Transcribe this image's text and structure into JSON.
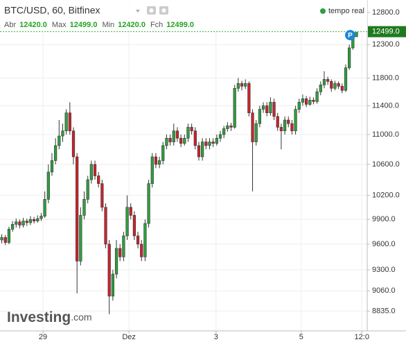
{
  "chart_data": {
    "type": "candlestick",
    "title": "BTC/USD, 60, Bitfinex",
    "realtime_label": "tempo real",
    "ohlc_labels": [
      "Abr",
      "Max",
      "Min",
      "Fch"
    ],
    "ohlc_values": [
      {
        "value": 12420,
        "label": "12420.0"
      },
      {
        "value": 12499,
        "label": "12499.0"
      },
      {
        "value": 12420,
        "label": "12420.0"
      },
      {
        "value": 12499,
        "label": "12499.0"
      }
    ],
    "last_price": {
      "value": 12499,
      "label": "12499.0"
    },
    "marker_label": "P",
    "logo": {
      "name": "Investing",
      "suffix": ".com"
    },
    "up_color": "#2f9e3f",
    "down_color": "#c8242c",
    "price_line_color": "#2db52d",
    "log_scale": true,
    "grid": true,
    "ylim": [
      8620,
      13000
    ],
    "yticks": [
      {
        "value": 12800,
        "label": "12800.0"
      },
      {
        "value": 12300,
        "label": "12300.0"
      },
      {
        "value": 11800,
        "label": "11800.0"
      },
      {
        "value": 11400,
        "label": "11400.0"
      },
      {
        "value": 11000,
        "label": "11000.0"
      },
      {
        "value": 10600,
        "label": "10600.0"
      },
      {
        "value": 10200,
        "label": "10200.0"
      },
      {
        "value": 9900,
        "label": "9900.0"
      },
      {
        "value": 9600,
        "label": "9600.0"
      },
      {
        "value": 9300,
        "label": "9300.0"
      },
      {
        "value": 9060,
        "label": "9060.0"
      },
      {
        "value": 8835,
        "label": "8835.0"
      }
    ],
    "xlim": [
      0,
      102.5
    ],
    "xticks": [
      {
        "value": 12,
        "label": "29"
      },
      {
        "value": 36,
        "label": "Dez"
      },
      {
        "value": 60.3,
        "label": "3"
      },
      {
        "value": 84.1,
        "label": "5"
      },
      {
        "value": 101,
        "label": "12:0"
      }
    ],
    "candles": [
      [
        9650,
        9720,
        9610,
        9680
      ],
      [
        9680,
        9710,
        9590,
        9620
      ],
      [
        9620,
        9810,
        9600,
        9780
      ],
      [
        9780,
        9880,
        9750,
        9840
      ],
      [
        9840,
        9910,
        9800,
        9870
      ],
      [
        9870,
        9900,
        9790,
        9830
      ],
      [
        9830,
        9920,
        9800,
        9880
      ],
      [
        9880,
        9910,
        9820,
        9860
      ],
      [
        9860,
        9940,
        9830,
        9900
      ],
      [
        9900,
        9930,
        9850,
        9880
      ],
      [
        9880,
        9950,
        9860,
        9910
      ],
      [
        9910,
        9980,
        9880,
        9940
      ],
      [
        9940,
        10250,
        9920,
        10150
      ],
      [
        10150,
        10600,
        10100,
        10500
      ],
      [
        10500,
        10750,
        10450,
        10650
      ],
      [
        10650,
        10950,
        10600,
        10850
      ],
      [
        10850,
        11200,
        10800,
        10980
      ],
      [
        10980,
        11150,
        10900,
        11050
      ],
      [
        11050,
        11350,
        11000,
        11300
      ],
      [
        11300,
        11450,
        11000,
        11050
      ],
      [
        11050,
        11100,
        10600,
        10700
      ],
      [
        10700,
        10750,
        9030,
        9400
      ],
      [
        9400,
        10050,
        9350,
        9950
      ],
      [
        9950,
        10250,
        9900,
        10150
      ],
      [
        10150,
        10450,
        10100,
        10400
      ],
      [
        10400,
        10650,
        10350,
        10600
      ],
      [
        10600,
        10650,
        10400,
        10450
      ],
      [
        10450,
        10500,
        10300,
        10350
      ],
      [
        10350,
        10400,
        10000,
        10050
      ],
      [
        10050,
        10100,
        9550,
        9600
      ],
      [
        9600,
        9650,
        8800,
        9000
      ],
      [
        9000,
        9300,
        8950,
        9250
      ],
      [
        9250,
        9650,
        9200,
        9550
      ],
      [
        9550,
        9600,
        9400,
        9450
      ],
      [
        9450,
        9750,
        9400,
        9700
      ],
      [
        9700,
        10200,
        9650,
        10050
      ],
      [
        10050,
        10100,
        9900,
        9950
      ],
      [
        9950,
        10000,
        9650,
        9700
      ],
      [
        9700,
        9750,
        9550,
        9600
      ],
      [
        9600,
        9650,
        9400,
        9450
      ],
      [
        9450,
        9900,
        9400,
        9850
      ],
      [
        9850,
        10400,
        9800,
        10350
      ],
      [
        10350,
        10750,
        10300,
        10700
      ],
      [
        10700,
        10750,
        10550,
        10600
      ],
      [
        10600,
        10700,
        10550,
        10650
      ],
      [
        10650,
        10900,
        10600,
        10850
      ],
      [
        10850,
        11000,
        10800,
        10950
      ],
      [
        10950,
        11000,
        10850,
        10900
      ],
      [
        10900,
        11150,
        10850,
        11050
      ],
      [
        11050,
        11100,
        10900,
        10950
      ],
      [
        10950,
        11000,
        10830,
        10880
      ],
      [
        10880,
        11000,
        10850,
        10950
      ],
      [
        10950,
        11150,
        10900,
        11100
      ],
      [
        11100,
        11150,
        11000,
        11050
      ],
      [
        11050,
        11100,
        10800,
        10850
      ],
      [
        10850,
        10900,
        10650,
        10700
      ],
      [
        10700,
        10950,
        10650,
        10900
      ],
      [
        10900,
        10950,
        10800,
        10850
      ],
      [
        10850,
        10950,
        10800,
        10900
      ],
      [
        10900,
        10950,
        10830,
        10880
      ],
      [
        10880,
        11000,
        10850,
        10950
      ],
      [
        10950,
        11050,
        10900,
        11000
      ],
      [
        11000,
        11120,
        10950,
        11080
      ],
      [
        11080,
        11170,
        11040,
        11120
      ],
      [
        11120,
        11160,
        11050,
        11100
      ],
      [
        11100,
        11700,
        11080,
        11650
      ],
      [
        11650,
        11800,
        11600,
        11720
      ],
      [
        11720,
        11760,
        11620,
        11680
      ],
      [
        11680,
        11780,
        11640,
        11720
      ],
      [
        11720,
        11750,
        11250,
        11300
      ],
      [
        11300,
        11350,
        10250,
        10900
      ],
      [
        10900,
        11200,
        10850,
        11150
      ],
      [
        11150,
        11400,
        11100,
        11350
      ],
      [
        11350,
        11450,
        11300,
        11400
      ],
      [
        11400,
        11450,
        11250,
        11300
      ],
      [
        11300,
        11520,
        11260,
        11450
      ],
      [
        11450,
        11500,
        11200,
        11250
      ],
      [
        11250,
        11300,
        11050,
        11100
      ],
      [
        11100,
        11150,
        10800,
        11050
      ],
      [
        11050,
        11250,
        11000,
        11200
      ],
      [
        11200,
        11250,
        11100,
        11150
      ],
      [
        11150,
        11200,
        11000,
        11050
      ],
      [
        11050,
        11400,
        11000,
        11350
      ],
      [
        11350,
        11500,
        11300,
        11450
      ],
      [
        11450,
        11560,
        11400,
        11500
      ],
      [
        11500,
        11540,
        11380,
        11420
      ],
      [
        11420,
        11530,
        11400,
        11480
      ],
      [
        11480,
        11520,
        11420,
        11460
      ],
      [
        11460,
        11650,
        11430,
        11600
      ],
      [
        11600,
        11750,
        11550,
        11700
      ],
      [
        11700,
        11900,
        11650,
        11780
      ],
      [
        11780,
        11820,
        11700,
        11750
      ],
      [
        11750,
        11780,
        11600,
        11650
      ],
      [
        11650,
        11760,
        11620,
        11720
      ],
      [
        11720,
        11750,
        11640,
        11680
      ],
      [
        11680,
        11720,
        11580,
        11620
      ],
      [
        11620,
        12000,
        11600,
        11950
      ],
      [
        11950,
        12300,
        11920,
        12250
      ],
      [
        12250,
        12450,
        12220,
        12420
      ],
      [
        12420,
        12499,
        12420,
        12499
      ]
    ]
  }
}
